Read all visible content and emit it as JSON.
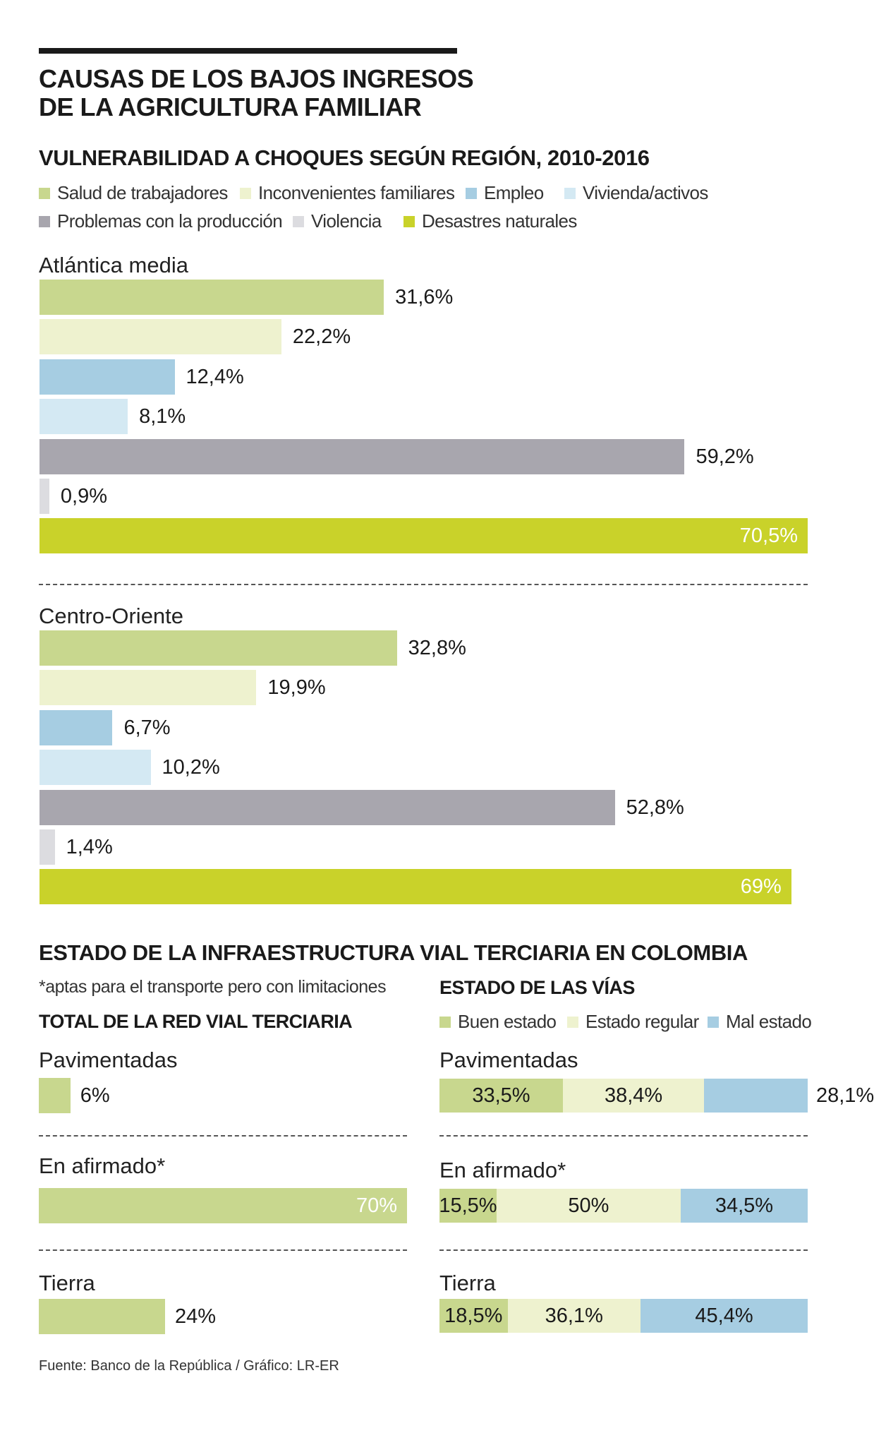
{
  "title_lines": [
    "CAUSAS DE LOS BAJOS INGRESOS",
    "DE LA AGRICULTURA FAMILIAR"
  ],
  "colors": {
    "salud": "#c8d78e",
    "inconvenientes": "#eef2cf",
    "empleo": "#a6cde2",
    "vivienda": "#d4e9f3",
    "produccion": "#a8a6ae",
    "violencia": "#dcdce0",
    "desastres": "#c9d22a",
    "buen": "#c8d78e",
    "regular": "#eef2cf",
    "mal": "#a6cde2",
    "text": "#1a1a1a",
    "inside_label": "#ffffff"
  },
  "chart_data": [
    {
      "type": "bar",
      "orientation": "horizontal",
      "title": "VULNERABILIDAD A CHOQUES SEGÚN REGIÓN, 2010-2016",
      "legend": [
        {
          "label": "Salud de trabajadores",
          "color_key": "salud"
        },
        {
          "label": "Inconvenientes familiares",
          "color_key": "inconvenientes"
        },
        {
          "label": "Empleo",
          "color_key": "empleo"
        },
        {
          "label": "Vivienda/activos",
          "color_key": "vivienda"
        },
        {
          "label": "Problemas con la producción",
          "color_key": "produccion"
        },
        {
          "label": "Violencia",
          "color_key": "violencia"
        },
        {
          "label": "Desastres naturales",
          "color_key": "desastres"
        }
      ],
      "value_max": 70.5,
      "groups": [
        {
          "name": "Atlántica media",
          "bars": [
            {
              "value": 31.6,
              "label": "31,6%",
              "color_key": "salud"
            },
            {
              "value": 22.2,
              "label": "22,2%",
              "color_key": "inconvenientes"
            },
            {
              "value": 12.4,
              "label": "12,4%",
              "color_key": "empleo"
            },
            {
              "value": 8.1,
              "label": "8,1%",
              "color_key": "vivienda"
            },
            {
              "value": 59.2,
              "label": "59,2%",
              "color_key": "produccion"
            },
            {
              "value": 0.9,
              "label": "0,9%",
              "color_key": "violencia"
            },
            {
              "value": 70.5,
              "label": "70,5%",
              "color_key": "desastres",
              "inside": true
            }
          ]
        },
        {
          "name": "Centro-Oriente",
          "bars": [
            {
              "value": 32.8,
              "label": "32,8%",
              "color_key": "salud"
            },
            {
              "value": 19.9,
              "label": "19,9%",
              "color_key": "inconvenientes"
            },
            {
              "value": 6.7,
              "label": "6,7%",
              "color_key": "empleo"
            },
            {
              "value": 10.2,
              "label": "10,2%",
              "color_key": "vivienda"
            },
            {
              "value": 52.8,
              "label": "52,8%",
              "color_key": "produccion"
            },
            {
              "value": 1.4,
              "label": "1,4%",
              "color_key": "violencia"
            },
            {
              "value": 69,
              "label": "69%",
              "color_key": "desastres",
              "inside": true
            }
          ]
        }
      ]
    },
    {
      "type": "bar",
      "orientation": "horizontal",
      "title": "ESTADO DE LA INFRAESTRUCTURA VIAL TERCIARIA EN COLOMBIA",
      "note": "*aptas para el transporte pero con limitaciones",
      "total_title": "TOTAL DE LA RED VIAL TERCIARIA",
      "value_max": 70,
      "categories": [
        "Pavimentadas",
        "En afirmado*",
        "Tierra"
      ],
      "values": [
        6,
        70,
        24
      ],
      "labels": [
        "6%",
        "70%",
        "24%"
      ],
      "inside": [
        false,
        true,
        false
      ],
      "color_key": "salud"
    },
    {
      "type": "bar",
      "orientation": "horizontal",
      "stacked": true,
      "title": "ESTADO DE LAS VÍAS",
      "legend": [
        {
          "label": "Buen estado",
          "color_key": "buen"
        },
        {
          "label": "Estado regular",
          "color_key": "regular"
        },
        {
          "label": "Mal estado",
          "color_key": "mal"
        }
      ],
      "categories": [
        "Pavimentadas",
        "En afirmado*",
        "Tierra"
      ],
      "series": [
        {
          "name": "Buen estado",
          "values": [
            33.5,
            15.5,
            18.5
          ],
          "labels": [
            "33,5%",
            "15,5%",
            "18,5%"
          ],
          "color_key": "buen"
        },
        {
          "name": "Estado regular",
          "values": [
            38.4,
            50,
            36.1
          ],
          "labels": [
            "38,4%",
            "50%",
            "36,1%"
          ],
          "color_key": "regular"
        },
        {
          "name": "Mal estado",
          "values": [
            28.1,
            34.5,
            45.4
          ],
          "labels": [
            "28,1%",
            "34,5%",
            "45,4%"
          ],
          "color_key": "mal"
        }
      ]
    }
  ],
  "source": "Fuente: Banco de la República / Gráfico: LR-ER"
}
